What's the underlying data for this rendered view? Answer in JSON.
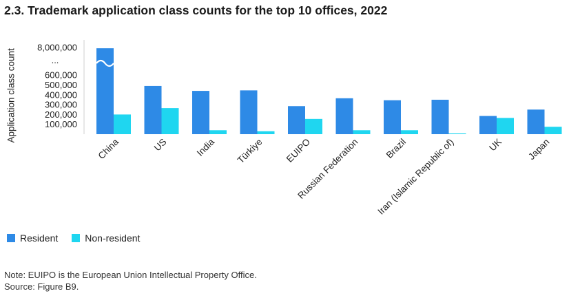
{
  "figure": {
    "title": "2.3. Trademark application class counts for the top 10 offices, 2022",
    "note": "Note: EUIPO is the European Union Intellectual Property Office.",
    "source": "Source: Figure B9."
  },
  "chart_data": {
    "type": "bar",
    "title": "2.3. Trademark application class counts for the top 10 offices, 2022",
    "xlabel": "",
    "ylabel": "Application class count",
    "categories": [
      "China",
      "US",
      "India",
      "Türkiye",
      "EUIPO",
      "Russian Federation",
      "Brazil",
      "Iran (Islamic Republic of)",
      "UK",
      "Japan"
    ],
    "series": [
      {
        "name": "Resident",
        "color": "#2e8ae6",
        "values": [
          7700000,
          490000,
          440000,
          445000,
          285000,
          365000,
          345000,
          350000,
          185000,
          250000
        ]
      },
      {
        "name": "Non-resident",
        "color": "#1fd6f0",
        "values": [
          200000,
          265000,
          40000,
          30000,
          155000,
          40000,
          40000,
          8000,
          165000,
          75000
        ]
      }
    ],
    "ylim": [
      0,
      8000000
    ],
    "axis_break": {
      "below": 700000,
      "above": 7700000,
      "label": "..."
    },
    "yticks": [
      {
        "value": 100000,
        "label": "100,000"
      },
      {
        "value": 200000,
        "label": "200,000"
      },
      {
        "value": 300000,
        "label": "300,000"
      },
      {
        "value": 400000,
        "label": "400,000"
      },
      {
        "value": 500000,
        "label": "500,000"
      },
      {
        "value": 600000,
        "label": "600,000"
      },
      {
        "value": 8000000,
        "label": "8,000,000"
      }
    ],
    "legend": {
      "position": "bottom-left",
      "entries": [
        "Resident",
        "Non-resident"
      ]
    },
    "grid": false
  }
}
